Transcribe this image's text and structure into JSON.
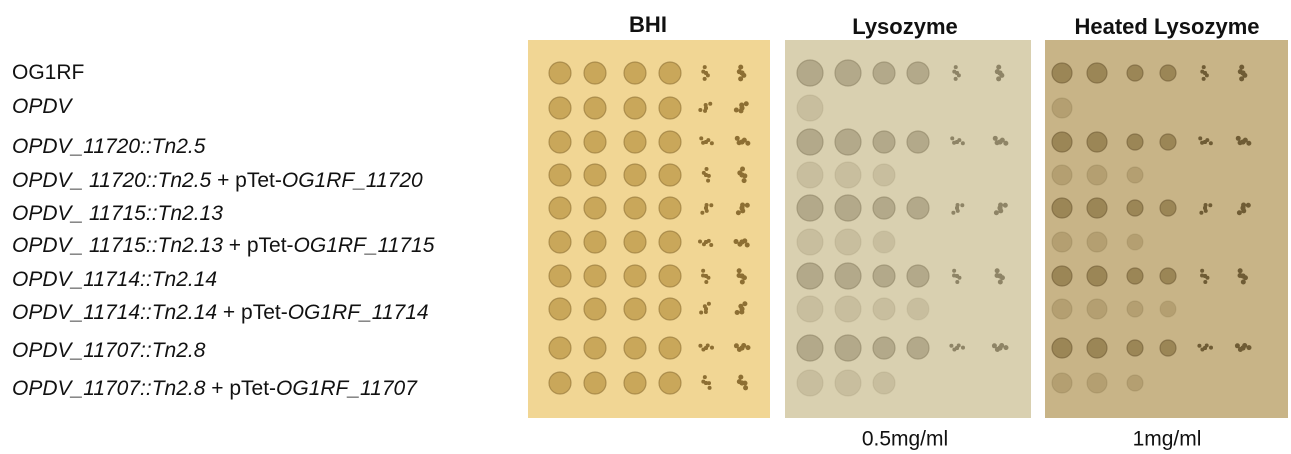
{
  "panels": [
    {
      "title": "BHI"
    },
    {
      "title": "Lysozyme",
      "caption": "0.5mg/ml"
    },
    {
      "title": "Heated Lysozyme",
      "caption": "1mg/ml"
    }
  ],
  "rows": [
    [
      {
        "text": "OG1RF",
        "italic": false
      }
    ],
    [
      {
        "text": "OPDV",
        "italic": true
      }
    ],
    [
      {
        "text": "OPDV_11720::Tn2.5",
        "italic": true
      }
    ],
    [
      {
        "text": "OPDV_ 11720::Tn2.5",
        "italic": true
      },
      {
        "text": " + pTet-",
        "italic": false
      },
      {
        "text": "OG1RF_11720",
        "italic": true
      }
    ],
    [
      {
        "text": "OPDV_ 11715::Tn2.13",
        "italic": true
      }
    ],
    [
      {
        "text": "OPDV_ 11715::Tn2.13",
        "italic": true
      },
      {
        "text": " + pTet-",
        "italic": false
      },
      {
        "text": "OG1RF_11715",
        "italic": true
      }
    ],
    [
      {
        "text": "OPDV_11714::Tn2.14",
        "italic": true
      }
    ],
    [
      {
        "text": "OPDV_11714::Tn2.14",
        "italic": true
      },
      {
        "text": " + pTet-",
        "italic": false
      },
      {
        "text": "OG1RF_11714",
        "italic": true
      }
    ],
    [
      {
        "text": "OPDV_11707::Tn2.8",
        "italic": true
      }
    ],
    [
      {
        "text": "OPDV_11707::Tn2.8",
        "italic": true
      },
      {
        "text": " + pTet-",
        "italic": false
      },
      {
        "text": "OG1RF_11707",
        "italic": true
      }
    ]
  ]
}
